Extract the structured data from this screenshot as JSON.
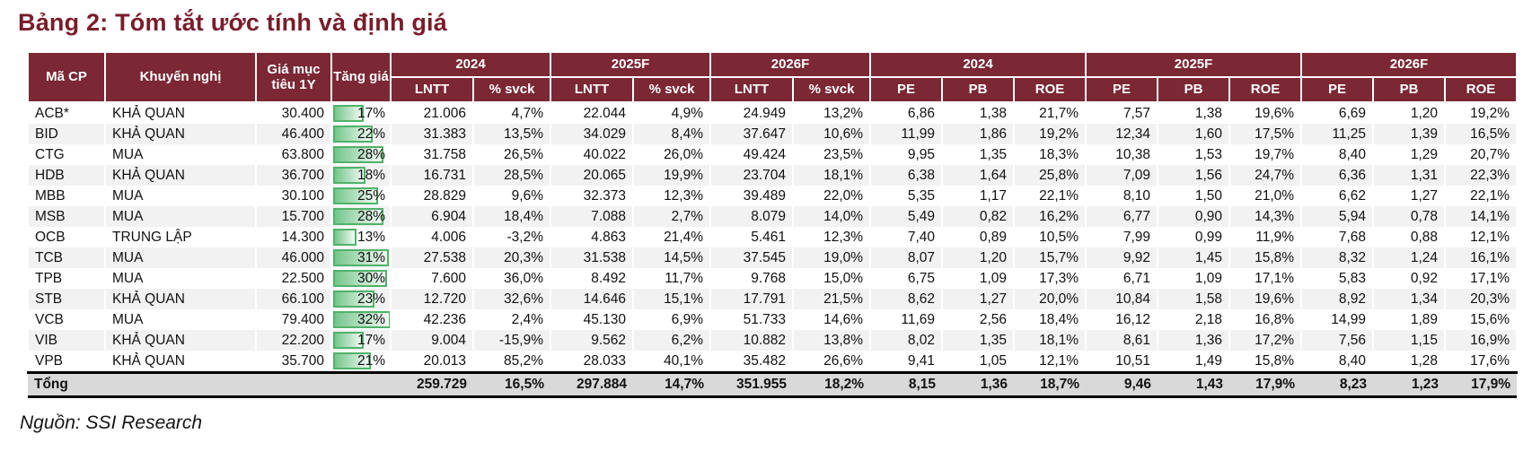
{
  "title": "Bảng 2: Tóm tắt ước tính và định giá",
  "source": "Nguồn: SSI Research",
  "colors": {
    "header_bg": "#7B2734",
    "title_text": "#7A1C2B",
    "stripe": "#F2F2F2",
    "total_bg": "#D9D9D9",
    "bar_border": "#50B26A",
    "bar_fill": "#74C68B"
  },
  "table": {
    "bar_max": 32,
    "header": {
      "ma_cp": "Mã CP",
      "khuyen_nghi": "Khuyến nghị",
      "gia_muc_tieu": "Giá mục tiêu 1Y",
      "tang_gia": "Tăng giá",
      "years": {
        "y2024": "2024",
        "y2025": "2025F",
        "y2026": "2026F"
      },
      "subs": {
        "lntt": "LNTT",
        "svck": "% svck",
        "pe": "PE",
        "pb": "PB",
        "roe": "ROE"
      }
    },
    "rows": [
      {
        "code": "ACB*",
        "rec": "KHẢ QUAN",
        "target": "30.400",
        "upside": "17%",
        "upside_pct": 17,
        "lntt_2024": "21.006",
        "svck_2024": "4,7%",
        "lntt_2025": "22.044",
        "svck_2025": "4,9%",
        "lntt_2026": "24.949",
        "svck_2026": "13,2%",
        "pe_2024": "6,86",
        "pb_2024": "1,38",
        "roe_2024": "21,7%",
        "pe_2025": "7,57",
        "pb_2025": "1,38",
        "roe_2025": "19,6%",
        "pe_2026": "6,69",
        "pb_2026": "1,20",
        "roe_2026": "19,2%"
      },
      {
        "code": "BID",
        "rec": "KHẢ QUAN",
        "target": "46.400",
        "upside": "22%",
        "upside_pct": 22,
        "lntt_2024": "31.383",
        "svck_2024": "13,5%",
        "lntt_2025": "34.029",
        "svck_2025": "8,4%",
        "lntt_2026": "37.647",
        "svck_2026": "10,6%",
        "pe_2024": "11,99",
        "pb_2024": "1,86",
        "roe_2024": "19,2%",
        "pe_2025": "12,34",
        "pb_2025": "1,60",
        "roe_2025": "17,5%",
        "pe_2026": "11,25",
        "pb_2026": "1,39",
        "roe_2026": "16,5%"
      },
      {
        "code": "CTG",
        "rec": "MUA",
        "target": "63.800",
        "upside": "28%",
        "upside_pct": 28,
        "lntt_2024": "31.758",
        "svck_2024": "26,5%",
        "lntt_2025": "40.022",
        "svck_2025": "26,0%",
        "lntt_2026": "49.424",
        "svck_2026": "23,5%",
        "pe_2024": "9,95",
        "pb_2024": "1,35",
        "roe_2024": "18,3%",
        "pe_2025": "10,38",
        "pb_2025": "1,53",
        "roe_2025": "19,7%",
        "pe_2026": "8,40",
        "pb_2026": "1,29",
        "roe_2026": "20,7%"
      },
      {
        "code": "HDB",
        "rec": "KHẢ QUAN",
        "target": "36.700",
        "upside": "18%",
        "upside_pct": 18,
        "lntt_2024": "16.731",
        "svck_2024": "28,5%",
        "lntt_2025": "20.065",
        "svck_2025": "19,9%",
        "lntt_2026": "23.704",
        "svck_2026": "18,1%",
        "pe_2024": "6,38",
        "pb_2024": "1,64",
        "roe_2024": "25,8%",
        "pe_2025": "7,09",
        "pb_2025": "1,56",
        "roe_2025": "24,7%",
        "pe_2026": "6,36",
        "pb_2026": "1,31",
        "roe_2026": "22,3%"
      },
      {
        "code": "MBB",
        "rec": "MUA",
        "target": "30.100",
        "upside": "25%",
        "upside_pct": 25,
        "lntt_2024": "28.829",
        "svck_2024": "9,6%",
        "lntt_2025": "32.373",
        "svck_2025": "12,3%",
        "lntt_2026": "39.489",
        "svck_2026": "22,0%",
        "pe_2024": "5,35",
        "pb_2024": "1,17",
        "roe_2024": "22,1%",
        "pe_2025": "8,10",
        "pb_2025": "1,50",
        "roe_2025": "21,0%",
        "pe_2026": "6,62",
        "pb_2026": "1,27",
        "roe_2026": "22,1%"
      },
      {
        "code": "MSB",
        "rec": "MUA",
        "target": "15.700",
        "upside": "28%",
        "upside_pct": 28,
        "lntt_2024": "6.904",
        "svck_2024": "18,4%",
        "lntt_2025": "7.088",
        "svck_2025": "2,7%",
        "lntt_2026": "8.079",
        "svck_2026": "14,0%",
        "pe_2024": "5,49",
        "pb_2024": "0,82",
        "roe_2024": "16,2%",
        "pe_2025": "6,77",
        "pb_2025": "0,90",
        "roe_2025": "14,3%",
        "pe_2026": "5,94",
        "pb_2026": "0,78",
        "roe_2026": "14,1%"
      },
      {
        "code": "OCB",
        "rec": "TRUNG LẬP",
        "target": "14.300",
        "upside": "13%",
        "upside_pct": 13,
        "lntt_2024": "4.006",
        "svck_2024": "-3,2%",
        "lntt_2025": "4.863",
        "svck_2025": "21,4%",
        "lntt_2026": "5.461",
        "svck_2026": "12,3%",
        "pe_2024": "7,40",
        "pb_2024": "0,89",
        "roe_2024": "10,5%",
        "pe_2025": "7,99",
        "pb_2025": "0,99",
        "roe_2025": "11,9%",
        "pe_2026": "7,68",
        "pb_2026": "0,88",
        "roe_2026": "12,1%"
      },
      {
        "code": "TCB",
        "rec": "MUA",
        "target": "46.000",
        "upside": "31%",
        "upside_pct": 31,
        "lntt_2024": "27.538",
        "svck_2024": "20,3%",
        "lntt_2025": "31.538",
        "svck_2025": "14,5%",
        "lntt_2026": "37.545",
        "svck_2026": "19,0%",
        "pe_2024": "8,07",
        "pb_2024": "1,20",
        "roe_2024": "15,7%",
        "pe_2025": "9,92",
        "pb_2025": "1,45",
        "roe_2025": "15,8%",
        "pe_2026": "8,32",
        "pb_2026": "1,24",
        "roe_2026": "16,1%"
      },
      {
        "code": "TPB",
        "rec": "MUA",
        "target": "22.500",
        "upside": "30%",
        "upside_pct": 30,
        "lntt_2024": "7.600",
        "svck_2024": "36,0%",
        "lntt_2025": "8.492",
        "svck_2025": "11,7%",
        "lntt_2026": "9.768",
        "svck_2026": "15,0%",
        "pe_2024": "6,75",
        "pb_2024": "1,09",
        "roe_2024": "17,3%",
        "pe_2025": "6,71",
        "pb_2025": "1,09",
        "roe_2025": "17,1%",
        "pe_2026": "5,83",
        "pb_2026": "0,92",
        "roe_2026": "17,1%"
      },
      {
        "code": "STB",
        "rec": "KHẢ QUAN",
        "target": "66.100",
        "upside": "23%",
        "upside_pct": 23,
        "lntt_2024": "12.720",
        "svck_2024": "32,6%",
        "lntt_2025": "14.646",
        "svck_2025": "15,1%",
        "lntt_2026": "17.791",
        "svck_2026": "21,5%",
        "pe_2024": "8,62",
        "pb_2024": "1,27",
        "roe_2024": "20,0%",
        "pe_2025": "10,84",
        "pb_2025": "1,58",
        "roe_2025": "19,6%",
        "pe_2026": "8,92",
        "pb_2026": "1,34",
        "roe_2026": "20,3%"
      },
      {
        "code": "VCB",
        "rec": "MUA",
        "target": "79.400",
        "upside": "32%",
        "upside_pct": 32,
        "lntt_2024": "42.236",
        "svck_2024": "2,4%",
        "lntt_2025": "45.130",
        "svck_2025": "6,9%",
        "lntt_2026": "51.733",
        "svck_2026": "14,6%",
        "pe_2024": "11,69",
        "pb_2024": "2,56",
        "roe_2024": "18,4%",
        "pe_2025": "16,12",
        "pb_2025": "2,18",
        "roe_2025": "16,8%",
        "pe_2026": "14,99",
        "pb_2026": "1,89",
        "roe_2026": "15,6%"
      },
      {
        "code": "VIB",
        "rec": "KHẢ QUAN",
        "target": "22.200",
        "upside": "17%",
        "upside_pct": 17,
        "lntt_2024": "9.004",
        "svck_2024": "-15,9%",
        "lntt_2025": "9.562",
        "svck_2025": "6,2%",
        "lntt_2026": "10.882",
        "svck_2026": "13,8%",
        "pe_2024": "8,02",
        "pb_2024": "1,35",
        "roe_2024": "18,1%",
        "pe_2025": "8,61",
        "pb_2025": "1,36",
        "roe_2025": "17,2%",
        "pe_2026": "7,56",
        "pb_2026": "1,15",
        "roe_2026": "16,9%"
      },
      {
        "code": "VPB",
        "rec": "KHẢ QUAN",
        "target": "35.700",
        "upside": "21%",
        "upside_pct": 21,
        "lntt_2024": "20.013",
        "svck_2024": "85,2%",
        "lntt_2025": "28.033",
        "svck_2025": "40,1%",
        "lntt_2026": "35.482",
        "svck_2026": "26,6%",
        "pe_2024": "9,41",
        "pb_2024": "1,05",
        "roe_2024": "12,1%",
        "pe_2025": "10,51",
        "pb_2025": "1,49",
        "roe_2025": "15,8%",
        "pe_2026": "8,40",
        "pb_2026": "1,28",
        "roe_2026": "17,6%"
      }
    ],
    "total": {
      "label": "Tổng",
      "lntt_2024": "259.729",
      "svck_2024": "16,5%",
      "lntt_2025": "297.884",
      "svck_2025": "14,7%",
      "lntt_2026": "351.955",
      "svck_2026": "18,2%",
      "pe_2024": "8,15",
      "pb_2024": "1,36",
      "roe_2024": "18,7%",
      "pe_2025": "9,46",
      "pb_2025": "1,43",
      "roe_2025": "17,9%",
      "pe_2026": "8,23",
      "pb_2026": "1,23",
      "roe_2026": "17,9%"
    }
  }
}
